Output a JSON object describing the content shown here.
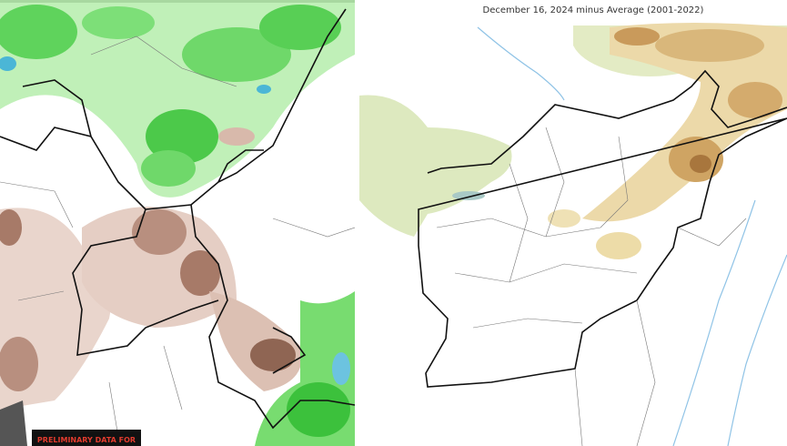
{
  "left_panel": {
    "label": "PRELIMINARY DATA FOR"
  },
  "right_panel": {
    "title": "December 16, 2024 minus Average (2001-2022)"
  }
}
